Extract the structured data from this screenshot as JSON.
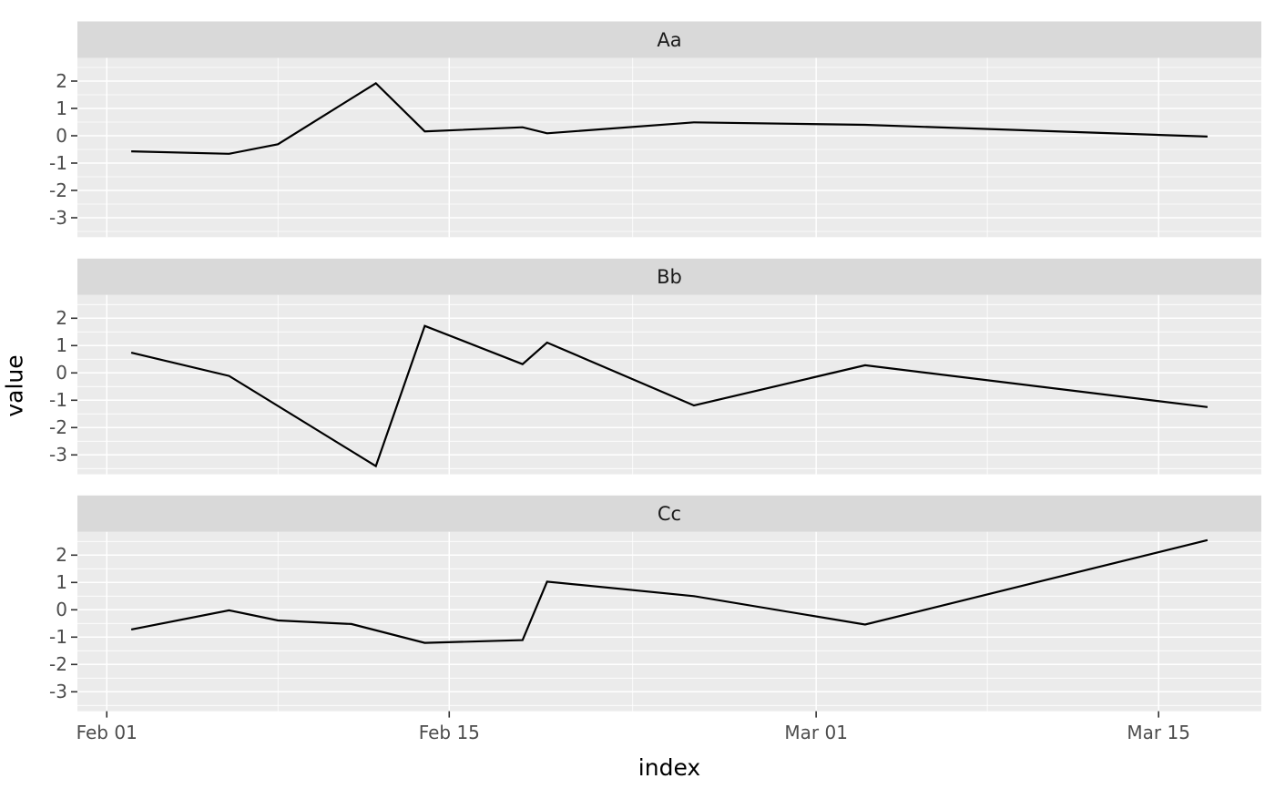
{
  "chart_data": {
    "type": "line",
    "title": "",
    "xlabel": "index",
    "ylabel": "value",
    "x_axis": {
      "tick_labels": [
        "Feb 01",
        "Feb 15",
        "Mar 01",
        "Mar 15"
      ],
      "tick_days": [
        0,
        14,
        29,
        43
      ],
      "minor_days": [
        7,
        21.5,
        36
      ],
      "xlim_days": [
        -1.2,
        47.2
      ],
      "note_day0": "Feb 01"
    },
    "y_axis": {
      "tick_labels": [
        "2",
        "1",
        "0",
        "-1",
        "-2",
        "-3"
      ],
      "tick_values": [
        2,
        1,
        0,
        -1,
        -2,
        -3
      ],
      "minor_values": [
        2.5,
        1.5,
        0.5,
        -0.5,
        -1.5,
        -2.5,
        -3.5
      ],
      "ylim": [
        -3.71,
        2.85
      ]
    },
    "grid": "on",
    "legend": "none",
    "facets": [
      {
        "label": "Aa",
        "dates": [
          "Feb 02",
          "Feb 06",
          "Feb 08",
          "Feb 12",
          "Feb 14",
          "Feb 18",
          "Feb 19",
          "Feb 25",
          "Mar 03",
          "Mar 17"
        ],
        "x_days": [
          1,
          5,
          7,
          11,
          13,
          17,
          18,
          24,
          31,
          45
        ],
        "values": [
          -0.57,
          -0.66,
          -0.31,
          1.92,
          0.16,
          0.31,
          0.09,
          0.49,
          0.4,
          -0.03
        ]
      },
      {
        "label": "Bb",
        "dates": [
          "Feb 02",
          "Feb 06",
          "Feb 12",
          "Feb 14",
          "Feb 18",
          "Feb 19",
          "Feb 25",
          "Mar 03",
          "Mar 17"
        ],
        "x_days": [
          1,
          5,
          11,
          13,
          17,
          18,
          24,
          31,
          45
        ],
        "values": [
          0.74,
          -0.11,
          -3.41,
          1.72,
          0.32,
          1.11,
          -1.19,
          0.28,
          -1.25
        ]
      },
      {
        "label": "Cc",
        "dates": [
          "Feb 02",
          "Feb 06",
          "Feb 08",
          "Feb 11",
          "Feb 14",
          "Feb 18",
          "Feb 19",
          "Feb 25",
          "Mar 03",
          "Mar 17"
        ],
        "x_days": [
          1,
          5,
          7,
          10,
          13,
          17,
          18,
          24,
          31,
          45
        ],
        "values": [
          -0.72,
          -0.02,
          -0.39,
          -0.52,
          -1.21,
          -1.11,
          1.03,
          0.5,
          -0.54,
          2.55
        ]
      }
    ],
    "colors": {
      "line": "#000000",
      "panel_bg": "#ebebeb",
      "strip_bg": "#d9d9d9",
      "grid": "#ffffff",
      "tick_text": "#4d4d4d",
      "tick_mark": "#333333",
      "figure_bg": "#ffffff"
    }
  }
}
